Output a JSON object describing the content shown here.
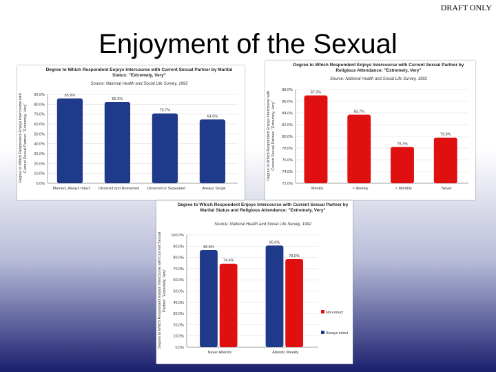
{
  "slide_title": "Enjoyment of the Sexual",
  "draft_label": "DRAFT ONLY",
  "chart_data": [
    {
      "type": "bar",
      "title": "Degree to Which Respondent Enjoys Intercourse with Current Sexual Partner by Marital Status: \"Extremely, Very\"",
      "subtitle": "Source: National Health and Social Life Survey, 1992",
      "y_label": "Degree to Which Respondent Enjoys Intercourse with Current Sexual Partner: \"Extremely, Very\"",
      "categories": [
        "Married, Always Intact",
        "Divorced and Remarried",
        "Divorced or Separated",
        "Always Single"
      ],
      "values": [
        85.9,
        82.3,
        70.7,
        64.6
      ],
      "value_labels": [
        "85.9%",
        "82.3%",
        "70.7%",
        "64.6%"
      ],
      "color": "#1f3a8a",
      "ylim": [
        0,
        90
      ],
      "yticks": [
        {
          "value": 0,
          "label": "0.0%"
        },
        {
          "value": 10,
          "label": "10.0%"
        },
        {
          "value": 20,
          "label": "20.0%"
        },
        {
          "value": 30,
          "label": "30.0%"
        },
        {
          "value": 40,
          "label": "40.0%"
        },
        {
          "value": 50,
          "label": "50.0%"
        },
        {
          "value": 60,
          "label": "60.0%"
        },
        {
          "value": 70,
          "label": "70.0%"
        },
        {
          "value": 80,
          "label": "80.0%"
        },
        {
          "value": 90,
          "label": "90.0%"
        }
      ],
      "grid": true
    },
    {
      "type": "bar",
      "title": "Degree to Which Respondent Enjoys Intercourse with Current Sexual Partner by Religious Attendance: \"Extremely, Very\"",
      "subtitle": "Source: National Health and Social Life Survey, 1992",
      "y_label": "Degree to Which Respondent Enjoys Intercourse with Current Sexual Partner: \"Extremely, Very\"",
      "categories": [
        "Weekly",
        "< Weekly",
        "< Monthly",
        "Never"
      ],
      "values": [
        87.0,
        83.7,
        78.2,
        79.8
      ],
      "value_labels": [
        "87.0%",
        "83.7%",
        "78.2%",
        "79.8%"
      ],
      "color": "#e01010",
      "ylim": [
        72,
        88
      ],
      "yticks": [
        {
          "value": 72,
          "label": "72.0%"
        },
        {
          "value": 74,
          "label": "74.0%"
        },
        {
          "value": 76,
          "label": "76.0%"
        },
        {
          "value": 78,
          "label": "78.0%"
        },
        {
          "value": 80,
          "label": "80.0%"
        },
        {
          "value": 82,
          "label": "82.0%"
        },
        {
          "value": 84,
          "label": "84.0%"
        },
        {
          "value": 86,
          "label": "86.0%"
        },
        {
          "value": 88,
          "label": "88.0%"
        }
      ],
      "grid": true
    },
    {
      "type": "bar",
      "title": "Degree to Which Respondent Enjoys Intercourse with Current Sexual Partner by Marital Status and Religious Attendance: \"Extremely, Very\"",
      "subtitle": "Source: National Health and Social Life Survey, 1992",
      "y_label": "Degree to Which Respondent Enjoys Intercourse with Current Sexual Partner: \"Extremely, Very\"",
      "categories": [
        "Never Attends",
        "Attends Weekly"
      ],
      "series": [
        {
          "name": "Always intact",
          "color": "#1f3a8a",
          "values": [
            86.5,
            90.6
          ],
          "value_labels": [
            "86.5%",
            "90.6%"
          ]
        },
        {
          "name": "Non-intact",
          "color": "#e01010",
          "values": [
            74.4,
            78.5
          ],
          "value_labels": [
            "74.4%",
            "78.5%"
          ]
        }
      ],
      "ylim": [
        0,
        100
      ],
      "yticks": [
        {
          "value": 0,
          "label": "0.0%"
        },
        {
          "value": 10,
          "label": "10.0%"
        },
        {
          "value": 20,
          "label": "20.0%"
        },
        {
          "value": 30,
          "label": "30.0%"
        },
        {
          "value": 40,
          "label": "40.0%"
        },
        {
          "value": 50,
          "label": "50.0%"
        },
        {
          "value": 60,
          "label": "60.0%"
        },
        {
          "value": 70,
          "label": "70.0%"
        },
        {
          "value": 80,
          "label": "80.0%"
        },
        {
          "value": 90,
          "label": "90.0%"
        },
        {
          "value": 100,
          "label": "100.0%"
        }
      ],
      "grid": true
    }
  ]
}
